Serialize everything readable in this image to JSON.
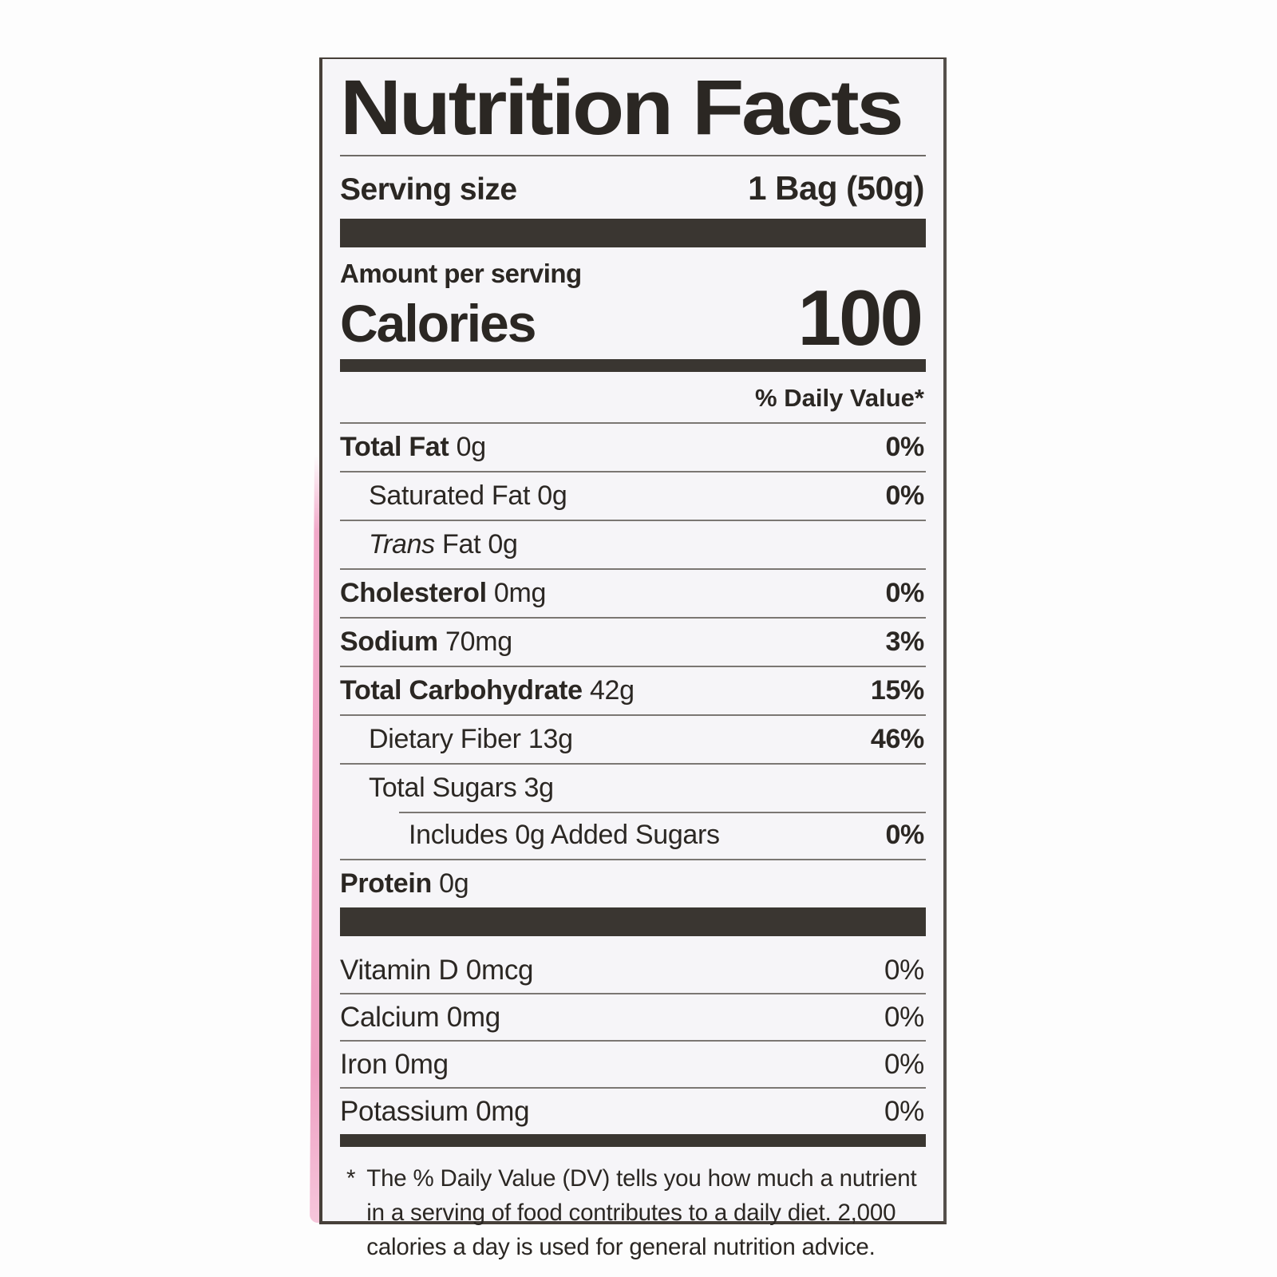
{
  "label": {
    "title": "Nutrition Facts",
    "serving": {
      "label": "Serving size",
      "value": "1 Bag (50g)"
    },
    "amount_per_serving": "Amount per serving",
    "calories": {
      "label": "Calories",
      "value": "100"
    },
    "daily_value_header": "% Daily Value*",
    "nutrients": [
      {
        "name": "Total Fat",
        "amount": "0g",
        "dv": "0%",
        "emphasis": true,
        "indent": 0
      },
      {
        "name": "Saturated Fat",
        "amount": "0g",
        "dv": "0%",
        "emphasis": false,
        "indent": 1
      },
      {
        "name": "Fat",
        "italic_prefix": "Trans",
        "amount": "0g",
        "dv": "",
        "emphasis": false,
        "indent": 1
      },
      {
        "name": "Cholesterol",
        "amount": "0mg",
        "dv": "0%",
        "emphasis": true,
        "indent": 0
      },
      {
        "name": "Sodium",
        "amount": "70mg",
        "dv": "3%",
        "emphasis": true,
        "indent": 0
      },
      {
        "name": "Total Carbohydrate",
        "amount": "42g",
        "dv": "15%",
        "emphasis": true,
        "indent": 0
      },
      {
        "name": "Dietary Fiber",
        "amount": "13g",
        "dv": "46%",
        "emphasis": false,
        "indent": 1
      },
      {
        "name": "Total Sugars",
        "amount": "3g",
        "dv": "",
        "emphasis": false,
        "indent": 1
      },
      {
        "name": "Includes 0g Added Sugars",
        "amount": "",
        "dv": "0%",
        "emphasis": false,
        "indent": 2
      },
      {
        "name": "Protein",
        "amount": "0g",
        "dv": "",
        "emphasis": true,
        "indent": 0
      }
    ],
    "micronutrients": [
      {
        "name": "Vitamin D",
        "amount": "0mcg",
        "dv": "0%"
      },
      {
        "name": "Calcium",
        "amount": "0mg",
        "dv": "0%"
      },
      {
        "name": "Iron",
        "amount": "0mg",
        "dv": "0%"
      },
      {
        "name": "Potassium",
        "amount": "0mg",
        "dv": "0%"
      }
    ],
    "footnote": {
      "marker": "*",
      "text": "The % Daily Value (DV) tells you how much a nutrient in a serving of food contributes to a daily diet. 2,000 calories a day is used for general nutrition advice."
    }
  },
  "colors": {
    "label_background": "#f6f5f8",
    "text": "#2b2723",
    "divider_bar": "#3a3631",
    "hairline": "#7b7773",
    "package_edge_pink": "#f2a9c9",
    "photo_background": "#fdfdfd"
  }
}
